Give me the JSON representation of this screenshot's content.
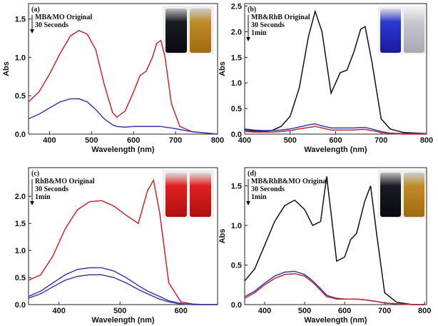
{
  "chart_data": [
    {
      "type": "line",
      "panel": "(a)",
      "y_label": "Abs",
      "x_label": "Wavelength (nm)",
      "xlim": [
        350,
        800
      ],
      "xticks": [
        400,
        500,
        600,
        700,
        800
      ],
      "ylim": [
        0,
        1.7
      ],
      "yticks": [
        {
          "value": 0,
          "label": "0.0"
        },
        {
          "value": 0.5,
          "label": "0.5"
        },
        {
          "value": 1,
          "label": "1.0"
        },
        {
          "value": 1.5,
          "label": "1.5"
        }
      ],
      "x": [
        350,
        375,
        400,
        425,
        450,
        470,
        490,
        510,
        530,
        550,
        560,
        580,
        600,
        615,
        630,
        645,
        655,
        665,
        675,
        690,
        710,
        740,
        780,
        800
      ],
      "series": [
        {
          "name": "MB&MO Original",
          "color": "#c0282d",
          "values": [
            0.42,
            0.55,
            0.78,
            1.05,
            1.28,
            1.35,
            1.3,
            1.1,
            0.65,
            0.28,
            0.22,
            0.3,
            0.55,
            0.76,
            0.82,
            1.0,
            1.18,
            1.22,
            1.0,
            0.4,
            0.1,
            0.03,
            0.01,
            0
          ]
        },
        {
          "name": "30 Seconds",
          "color": "#3a3ab0",
          "values": [
            0.2,
            0.26,
            0.34,
            0.42,
            0.46,
            0.46,
            0.42,
            0.32,
            0.2,
            0.12,
            0.1,
            0.09,
            0.1,
            0.1,
            0.1,
            0.1,
            0.1,
            0.1,
            0.09,
            0.08,
            0.06,
            0.03,
            0.01,
            0
          ]
        }
      ]
    },
    {
      "type": "line",
      "panel": "(b)",
      "y_label": "Abs",
      "x_label": "Wavelength (nm)",
      "xlim": [
        400,
        800
      ],
      "xticks": [
        400,
        500,
        600,
        700,
        800
      ],
      "ylim": [
        0,
        2.55
      ],
      "yticks": [
        {
          "value": 0,
          "label": "0.0"
        },
        {
          "value": 0.5,
          "label": "0.5"
        },
        {
          "value": 1,
          "label": "1.0"
        },
        {
          "value": 1.5,
          "label": "1.5"
        },
        {
          "value": 2,
          "label": "2.0"
        },
        {
          "value": 2.5,
          "label": "2.5"
        }
      ],
      "x": [
        400,
        420,
        440,
        460,
        480,
        500,
        520,
        540,
        555,
        570,
        590,
        610,
        625,
        640,
        655,
        665,
        680,
        700,
        720,
        750,
        800
      ],
      "series": [
        {
          "name": "MB&RhB Original",
          "color": "#111111",
          "values": [
            0.08,
            0.06,
            0.05,
            0.07,
            0.15,
            0.35,
            0.9,
            1.9,
            2.4,
            2.0,
            0.8,
            1.2,
            1.25,
            1.6,
            2.05,
            2.1,
            1.4,
            0.3,
            0.1,
            0.03,
            0.01
          ]
        },
        {
          "name": "30 Seconds",
          "color": "#3a3ab0",
          "values": [
            0.1,
            0.08,
            0.07,
            0.07,
            0.08,
            0.1,
            0.14,
            0.18,
            0.2,
            0.16,
            0.12,
            0.12,
            0.12,
            0.12,
            0.13,
            0.13,
            0.1,
            0.05,
            0.02,
            0.01,
            0.01
          ]
        },
        {
          "name": "1min",
          "color": "#c0282d",
          "values": [
            0.05,
            0.04,
            0.04,
            0.04,
            0.05,
            0.07,
            0.1,
            0.13,
            0.15,
            0.12,
            0.08,
            0.08,
            0.08,
            0.08,
            0.09,
            0.09,
            0.07,
            0.03,
            0.01,
            0,
            0
          ]
        }
      ]
    },
    {
      "type": "line",
      "panel": "(c)",
      "x_label": "Wavelength (nm)",
      "xlim": [
        350,
        660
      ],
      "xticks": [
        400,
        500,
        600
      ],
      "ylim": [
        0,
        2.53
      ],
      "yticks": [
        {
          "value": 0,
          "label": "0.0"
        },
        {
          "value": 0.5,
          "label": "0.5"
        },
        {
          "value": 1,
          "label": "1.0"
        },
        {
          "value": 1.5,
          "label": "1.5"
        },
        {
          "value": 2,
          "label": "2.0"
        }
      ],
      "x": [
        350,
        370,
        390,
        410,
        430,
        450,
        470,
        490,
        510,
        530,
        545,
        555,
        565,
        580,
        600,
        620,
        640,
        660
      ],
      "series": [
        {
          "name": "RhB&MO Original",
          "color": "#c0282d",
          "values": [
            0.45,
            0.55,
            0.9,
            1.4,
            1.75,
            1.9,
            1.92,
            1.82,
            1.65,
            1.5,
            2.1,
            2.3,
            1.7,
            0.4,
            0.05,
            0.01,
            0,
            0
          ]
        },
        {
          "name": "30 Seconds",
          "color": "#3a3ab0",
          "values": [
            0.15,
            0.25,
            0.4,
            0.55,
            0.65,
            0.68,
            0.68,
            0.62,
            0.5,
            0.35,
            0.25,
            0.2,
            0.15,
            0.07,
            0.02,
            0,
            0,
            0
          ]
        },
        {
          "name": "1min",
          "color": "#4a3aa0",
          "values": [
            0.12,
            0.2,
            0.33,
            0.45,
            0.52,
            0.55,
            0.55,
            0.5,
            0.4,
            0.28,
            0.2,
            0.15,
            0.1,
            0.05,
            0.01,
            0,
            0,
            0
          ]
        }
      ]
    },
    {
      "type": "line",
      "panel": "(d)",
      "y_label": "Abs",
      "x_label": "Wavelength (nm)",
      "xlim": [
        350,
        805
      ],
      "xticks": [
        400,
        500,
        600,
        700,
        800
      ],
      "ylim": [
        0,
        1.73
      ],
      "yticks": [
        {
          "value": 0,
          "label": "0.0"
        },
        {
          "value": 0.5,
          "label": "0.5"
        },
        {
          "value": 1,
          "label": "1.0"
        },
        {
          "value": 1.5,
          "label": "1.5"
        }
      ],
      "x": [
        350,
        375,
        400,
        425,
        450,
        475,
        500,
        520,
        540,
        555,
        565,
        580,
        600,
        615,
        630,
        650,
        665,
        680,
        700,
        730,
        770,
        800
      ],
      "series": [
        {
          "name": "MB&RhB&MO Original",
          "color": "#111111",
          "values": [
            0.3,
            0.45,
            0.75,
            1.05,
            1.25,
            1.32,
            1.2,
            1.0,
            1.05,
            1.62,
            1.2,
            0.55,
            0.6,
            0.82,
            0.9,
            1.3,
            1.5,
            0.9,
            0.15,
            0.03,
            0,
            0
          ]
        },
        {
          "name": "30 Seconds",
          "color": "#3a3ab0",
          "values": [
            0.1,
            0.17,
            0.27,
            0.36,
            0.41,
            0.42,
            0.38,
            0.3,
            0.2,
            0.12,
            0.1,
            0.08,
            0.07,
            0.07,
            0.07,
            0.06,
            0.05,
            0.04,
            0.02,
            0.01,
            0,
            0
          ]
        },
        {
          "name": "1min",
          "color": "#c0282d",
          "values": [
            0.08,
            0.15,
            0.25,
            0.33,
            0.38,
            0.39,
            0.36,
            0.28,
            0.18,
            0.1,
            0.09,
            0.07,
            0.07,
            0.07,
            0.07,
            0.06,
            0.05,
            0.04,
            0.02,
            0.01,
            0,
            0
          ]
        }
      ]
    }
  ]
}
